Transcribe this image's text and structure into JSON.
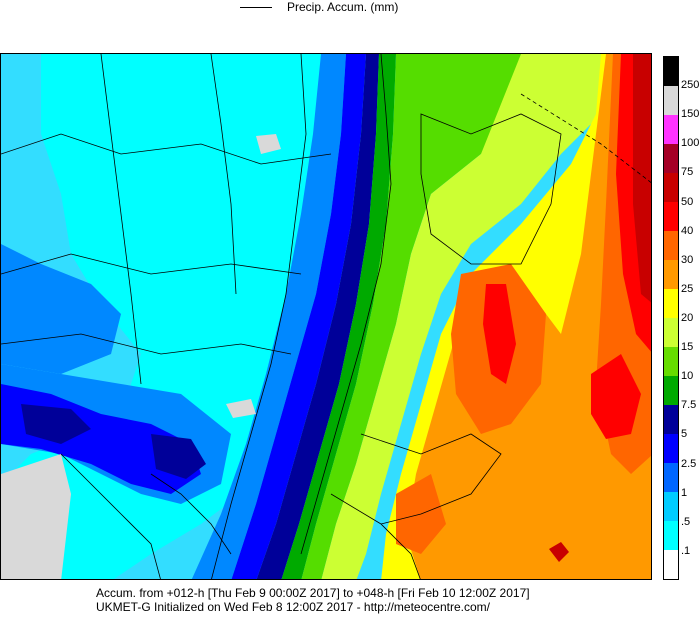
{
  "legend": {
    "title": "Precip. Accum. (mm)"
  },
  "colorbar": {
    "levels": [
      {
        "label": "250",
        "color": "#000000"
      },
      {
        "label": "150",
        "color": "#d9d9d9"
      },
      {
        "label": "100",
        "color": "#ff33ff"
      },
      {
        "label": "75",
        "color": "#a50026"
      },
      {
        "label": "50",
        "color": "#c80000"
      },
      {
        "label": "40",
        "color": "#ff0000"
      },
      {
        "label": "30",
        "color": "#ff6600"
      },
      {
        "label": "25",
        "color": "#ff9900"
      },
      {
        "label": "20",
        "color": "#ffff00"
      },
      {
        "label": "15",
        "color": "#ccff33"
      },
      {
        "label": "10",
        "color": "#66dd00"
      },
      {
        "label": "7.5",
        "color": "#00aa00"
      },
      {
        "label": "5",
        "color": "#000099"
      },
      {
        "label": "2.5",
        "color": "#0000ff"
      },
      {
        "label": "1",
        "color": "#0066ff"
      },
      {
        "label": ".5",
        "color": "#00ccff"
      },
      {
        "label": ".1",
        "color": "#00ffff"
      },
      {
        "label": "",
        "color": "#ffffff"
      }
    ]
  },
  "footer": {
    "line1": "Accum. from +012-h [Thu Feb 9 00:00Z 2017] to +048-h [Fri Feb 10 12:00Z 2017]",
    "line2": "UKMET-G Initialized on Wed Feb 8 12:00Z 2017 - http://meteocentre.com/"
  }
}
